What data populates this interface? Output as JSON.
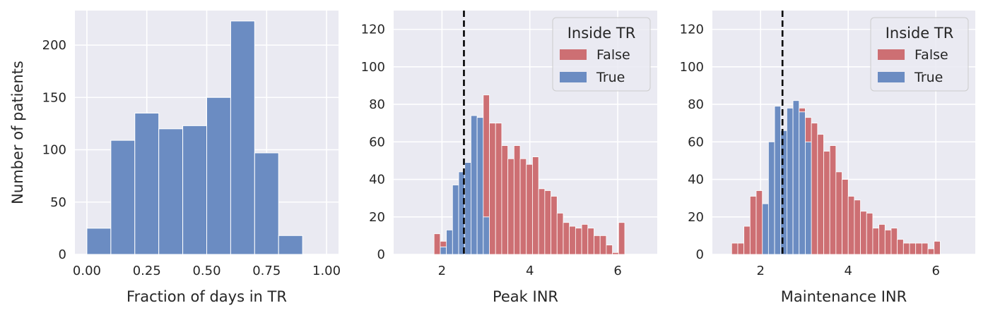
{
  "colors": {
    "background": "#eaeaf2",
    "grid": "#ffffff",
    "blue": "#6b8cc2",
    "red": "#cd6f73",
    "threshold": "#000000"
  },
  "chart_data": [
    {
      "type": "bar",
      "title": "",
      "xlabel": "Fraction of days in TR",
      "ylabel": "Number of patients",
      "xlim": [
        -0.05,
        1.05
      ],
      "ylim": [
        0,
        233
      ],
      "xticks": [
        "0.00",
        "0.25",
        "0.50",
        "0.75",
        "1.00"
      ],
      "yticks": [
        "0",
        "50",
        "100",
        "150",
        "200"
      ],
      "grid": true,
      "bin_width": 0.1,
      "bins": [
        {
          "x": 0.0,
          "value": 25
        },
        {
          "x": 0.1,
          "value": 109
        },
        {
          "x": 0.2,
          "value": 135
        },
        {
          "x": 0.3,
          "value": 120
        },
        {
          "x": 0.4,
          "value": 123
        },
        {
          "x": 0.5,
          "value": 150
        },
        {
          "x": 0.6,
          "value": 223
        },
        {
          "x": 0.7,
          "value": 97
        },
        {
          "x": 0.8,
          "value": 18
        },
        {
          "x": 0.9,
          "value": 0
        }
      ]
    },
    {
      "type": "bar",
      "stacked": true,
      "title": "",
      "xlabel": "Peak INR",
      "ylabel": "",
      "xlim": [
        0.9,
        6.9
      ],
      "ylim": [
        0,
        130
      ],
      "xticks": [
        "2",
        "4",
        "6"
      ],
      "yticks": [
        "0",
        "20",
        "40",
        "60",
        "80",
        "100",
        "120"
      ],
      "grid": true,
      "threshold_x": 2.5,
      "legend": {
        "title": "Inside TR",
        "position": "top-right",
        "items": [
          "False",
          "True"
        ]
      },
      "bin_width": 0.14,
      "series": [
        {
          "name": "True",
          "bins": [
            {
              "x": 1.96,
              "value": 4
            },
            {
              "x": 2.1,
              "value": 13
            },
            {
              "x": 2.24,
              "value": 37
            },
            {
              "x": 2.38,
              "value": 44
            },
            {
              "x": 2.52,
              "value": 49
            },
            {
              "x": 2.66,
              "value": 74
            },
            {
              "x": 2.8,
              "value": 73
            },
            {
              "x": 2.94,
              "value": 20
            }
          ]
        },
        {
          "name": "False",
          "bins": [
            {
              "x": 1.82,
              "value": 11
            },
            {
              "x": 1.96,
              "value": 3
            },
            {
              "x": 2.94,
              "value": 65
            },
            {
              "x": 3.08,
              "value": 70
            },
            {
              "x": 3.22,
              "value": 70
            },
            {
              "x": 3.36,
              "value": 58
            },
            {
              "x": 3.5,
              "value": 51
            },
            {
              "x": 3.64,
              "value": 58
            },
            {
              "x": 3.78,
              "value": 51
            },
            {
              "x": 3.92,
              "value": 48
            },
            {
              "x": 4.06,
              "value": 52
            },
            {
              "x": 4.2,
              "value": 35
            },
            {
              "x": 4.34,
              "value": 34
            },
            {
              "x": 4.48,
              "value": 31
            },
            {
              "x": 4.62,
              "value": 22
            },
            {
              "x": 4.76,
              "value": 17
            },
            {
              "x": 4.9,
              "value": 15
            },
            {
              "x": 5.04,
              "value": 14
            },
            {
              "x": 5.18,
              "value": 16
            },
            {
              "x": 5.32,
              "value": 14
            },
            {
              "x": 5.46,
              "value": 10
            },
            {
              "x": 5.6,
              "value": 10
            },
            {
              "x": 5.74,
              "value": 5
            },
            {
              "x": 5.88,
              "value": 1
            },
            {
              "x": 6.02,
              "value": 17
            }
          ]
        }
      ]
    },
    {
      "type": "bar",
      "stacked": true,
      "title": "",
      "xlabel": "Maintenance INR",
      "ylabel": "",
      "xlim": [
        0.9,
        6.9
      ],
      "ylim": [
        0,
        130
      ],
      "xticks": [
        "2",
        "4",
        "6"
      ],
      "yticks": [
        "0",
        "20",
        "40",
        "60",
        "80",
        "100",
        "120"
      ],
      "grid": true,
      "threshold_x": 2.5,
      "legend": {
        "title": "Inside TR",
        "position": "top-right",
        "items": [
          "False",
          "True"
        ]
      },
      "bin_width": 0.14,
      "series": [
        {
          "name": "True",
          "bins": [
            {
              "x": 2.04,
              "value": 27
            },
            {
              "x": 2.18,
              "value": 60
            },
            {
              "x": 2.32,
              "value": 79
            },
            {
              "x": 2.46,
              "value": 66
            },
            {
              "x": 2.6,
              "value": 78
            },
            {
              "x": 2.74,
              "value": 82
            },
            {
              "x": 2.88,
              "value": 76
            },
            {
              "x": 3.02,
              "value": 60
            }
          ]
        },
        {
          "name": "False",
          "bins": [
            {
              "x": 1.34,
              "value": 6
            },
            {
              "x": 1.48,
              "value": 6
            },
            {
              "x": 1.62,
              "value": 15
            },
            {
              "x": 1.76,
              "value": 31
            },
            {
              "x": 1.9,
              "value": 34
            },
            {
              "x": 2.88,
              "value": 2
            },
            {
              "x": 3.02,
              "value": 13
            },
            {
              "x": 3.16,
              "value": 70
            },
            {
              "x": 3.3,
              "value": 64
            },
            {
              "x": 3.44,
              "value": 55
            },
            {
              "x": 3.58,
              "value": 58
            },
            {
              "x": 3.72,
              "value": 44
            },
            {
              "x": 3.86,
              "value": 40
            },
            {
              "x": 4.0,
              "value": 31
            },
            {
              "x": 4.14,
              "value": 29
            },
            {
              "x": 4.28,
              "value": 23
            },
            {
              "x": 4.42,
              "value": 22
            },
            {
              "x": 4.56,
              "value": 14
            },
            {
              "x": 4.7,
              "value": 16
            },
            {
              "x": 4.84,
              "value": 13
            },
            {
              "x": 4.98,
              "value": 14
            },
            {
              "x": 5.12,
              "value": 8
            },
            {
              "x": 5.26,
              "value": 6
            },
            {
              "x": 5.4,
              "value": 6
            },
            {
              "x": 5.54,
              "value": 6
            },
            {
              "x": 5.68,
              "value": 6
            },
            {
              "x": 5.82,
              "value": 3
            },
            {
              "x": 5.96,
              "value": 7
            }
          ]
        }
      ]
    }
  ]
}
